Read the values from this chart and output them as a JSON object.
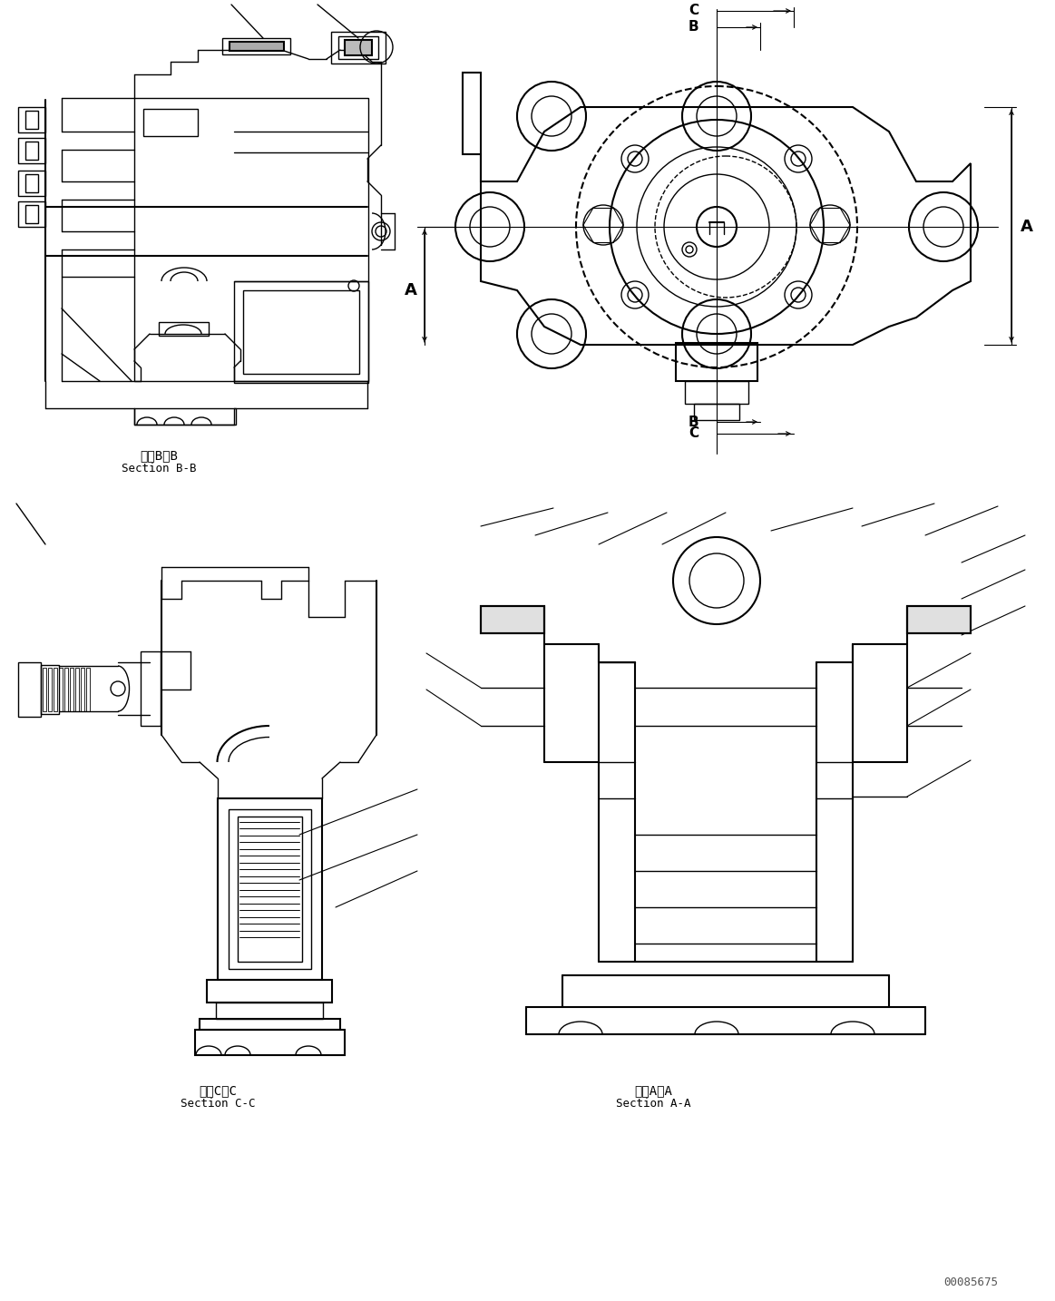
{
  "bg_color": "#ffffff",
  "line_color": "#000000",
  "fig_width": 11.63,
  "fig_height": 14.34,
  "dpi": 100,
  "part_number": "00085675",
  "section_labels": {
    "bb": [
      "断面B－B",
      "Section B-B"
    ],
    "cc": [
      "断面C－C",
      "Section C-C"
    ],
    "aa": [
      "断面A－A",
      "Section A-A"
    ]
  },
  "label_font": "monospace",
  "label_size_jp": 10,
  "label_size_en": 9
}
